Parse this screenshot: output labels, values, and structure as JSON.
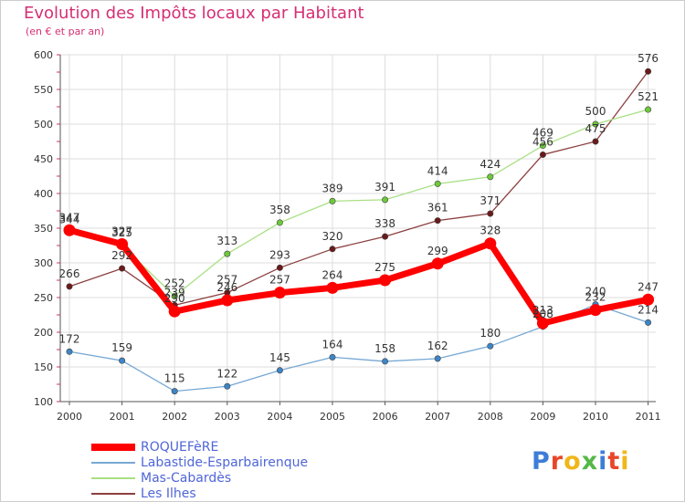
{
  "header": {
    "title": "Evolution des Impôts locaux par Habitant",
    "subtitle": "(en € et par an)"
  },
  "logo": {
    "text": "Proxiti",
    "letter_colors": [
      "#3d7dd8",
      "#e8462a",
      "#f0b61a",
      "#55b848",
      "#3d7dd8",
      "#e8462a",
      "#f0b61a"
    ]
  },
  "colors": {
    "background": "#ffffff",
    "grid": "#dddddd",
    "axis": "#555555",
    "label_text": "#333333",
    "title": "#d62e73",
    "legend_text": "#4f66d8"
  },
  "chart_data": {
    "type": "line",
    "title": "Evolution des Impôts locaux par Habitant",
    "subtitle": "(en € et par an)",
    "x": [
      "2000",
      "2001",
      "2002",
      "2003",
      "2004",
      "2005",
      "2006",
      "2007",
      "2008",
      "2009",
      "2010",
      "2011"
    ],
    "ylim": [
      100,
      600
    ],
    "yticks": [
      100,
      150,
      200,
      250,
      300,
      350,
      400,
      450,
      500,
      550,
      600
    ],
    "grid": true,
    "legend_position": "bottom-left",
    "series": [
      {
        "name": "ROQUEFèRE",
        "color": "#ff0000",
        "marker_color": "#ff0000",
        "width": 7,
        "values": [
          347,
          327,
          230,
          246,
          257,
          264,
          275,
          299,
          328,
          213,
          232,
          247
        ]
      },
      {
        "name": "Labastide-Esparbairenque",
        "color": "#77a8d4",
        "marker_color": "#3d85c6",
        "width": 1.3,
        "values": [
          172,
          159,
          115,
          122,
          145,
          164,
          158,
          162,
          180,
          208,
          240,
          214
        ]
      },
      {
        "name": "Mas-Cabardès",
        "color": "#a9e084",
        "marker_color": "#6dc93a",
        "width": 1.3,
        "values": [
          344,
          325,
          252,
          313,
          358,
          389,
          391,
          414,
          424,
          469,
          500,
          521
        ]
      },
      {
        "name": "Les Ilhes",
        "color": "#8c3f3f",
        "marker_color": "#6a1a1a",
        "width": 1.3,
        "values": [
          266,
          292,
          239,
          257,
          293,
          320,
          338,
          361,
          371,
          456,
          475,
          576
        ]
      }
    ],
    "point_labels": [
      [
        "347",
        "327",
        "230",
        "246",
        "257",
        "264",
        "275",
        "299",
        "328",
        "213",
        "232",
        "247"
      ],
      [
        "172",
        "159",
        "115",
        "122",
        "145",
        "164",
        "158",
        "162",
        "180",
        "208",
        "240",
        "214"
      ],
      [
        "344",
        "325",
        "252",
        "313",
        "358",
        "389",
        "391",
        "414",
        "424",
        "469",
        "500",
        "521"
      ],
      [
        "266",
        "292",
        "239",
        "257",
        "293",
        "320",
        "338",
        "361",
        "371",
        "456",
        "475",
        "576"
      ]
    ]
  }
}
